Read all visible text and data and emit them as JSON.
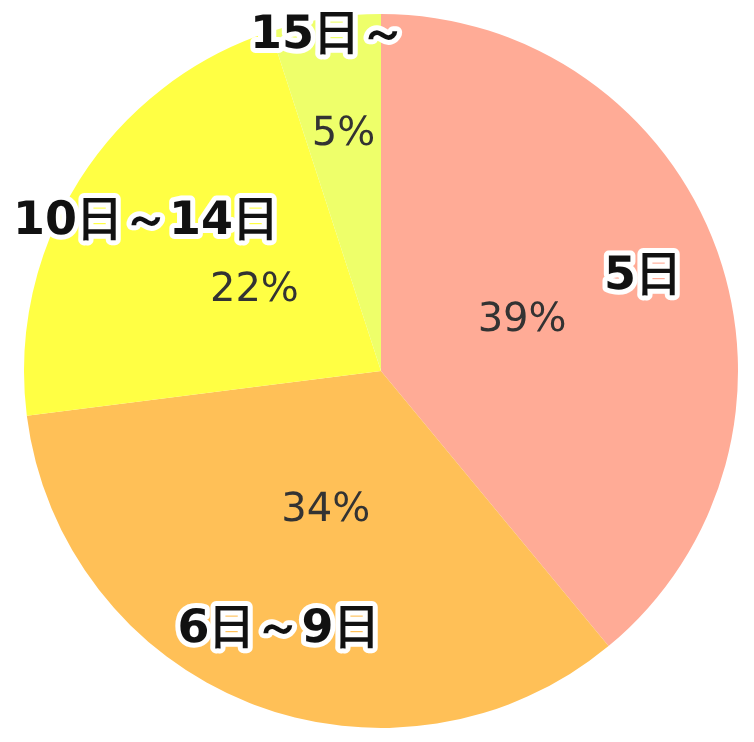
{
  "chart_data": {
    "type": "pie",
    "categories": [
      "5日",
      "6日～9日",
      "10日～14日",
      "15日～"
    ],
    "values": [
      39,
      34,
      22,
      5
    ],
    "value_labels": [
      "39%",
      "34%",
      "22%",
      "5%"
    ],
    "colors": [
      "#ffab96",
      "#ffc057",
      "#ffff44",
      "#eeff6a"
    ],
    "legend": false
  }
}
